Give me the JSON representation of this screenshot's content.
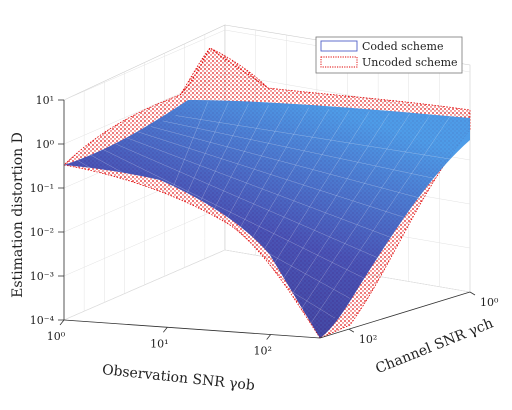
{
  "chart_data": {
    "type": "surface",
    "title": "",
    "xlabel": "Observation SNR γob",
    "ylabel": "Channel SNR γch",
    "zlabel": "Estimation distortion D",
    "x_scale": "log",
    "y_scale": "log",
    "z_scale": "log",
    "xlim": [
      1,
      300
    ],
    "ylim": [
      1,
      300
    ],
    "zlim": [
      0.0001,
      10
    ],
    "x_ticks": [
      {
        "value": 1,
        "label": "10⁰"
      },
      {
        "value": 10,
        "label": "10¹"
      },
      {
        "value": 100,
        "label": "10²"
      }
    ],
    "y_ticks": [
      {
        "value": 1,
        "label": "10⁰"
      },
      {
        "value": 100,
        "label": "10²"
      }
    ],
    "z_ticks": [
      {
        "value": 0.0001,
        "label": "10⁻⁴"
      },
      {
        "value": 0.001,
        "label": "10⁻³"
      },
      {
        "value": 0.01,
        "label": "10⁻²"
      },
      {
        "value": 0.1,
        "label": "10⁻¹"
      },
      {
        "value": 1,
        "label": "10⁰"
      },
      {
        "value": 10,
        "label": "10¹"
      }
    ],
    "grid": true,
    "legend_position": "top-right",
    "series": [
      {
        "name": "Coded scheme",
        "color_low": "#2e2e8a",
        "color_high": "#3f94e6",
        "style": "mesh",
        "corner_values": {
          "x_low_y_low": 0.3,
          "x_low_y_high": 0.3,
          "x_high_y_low": 3,
          "x_high_y_high": 0.0001
        }
      },
      {
        "name": "Uncoded scheme",
        "color": "#e00000",
        "style": "dotted-mesh",
        "corner_values": {
          "x_low_y_low": 0.3,
          "x_low_y_high": 0.3,
          "x_high_y_low": 1.2,
          "x_high_y_high": 0.0001
        }
      }
    ]
  }
}
